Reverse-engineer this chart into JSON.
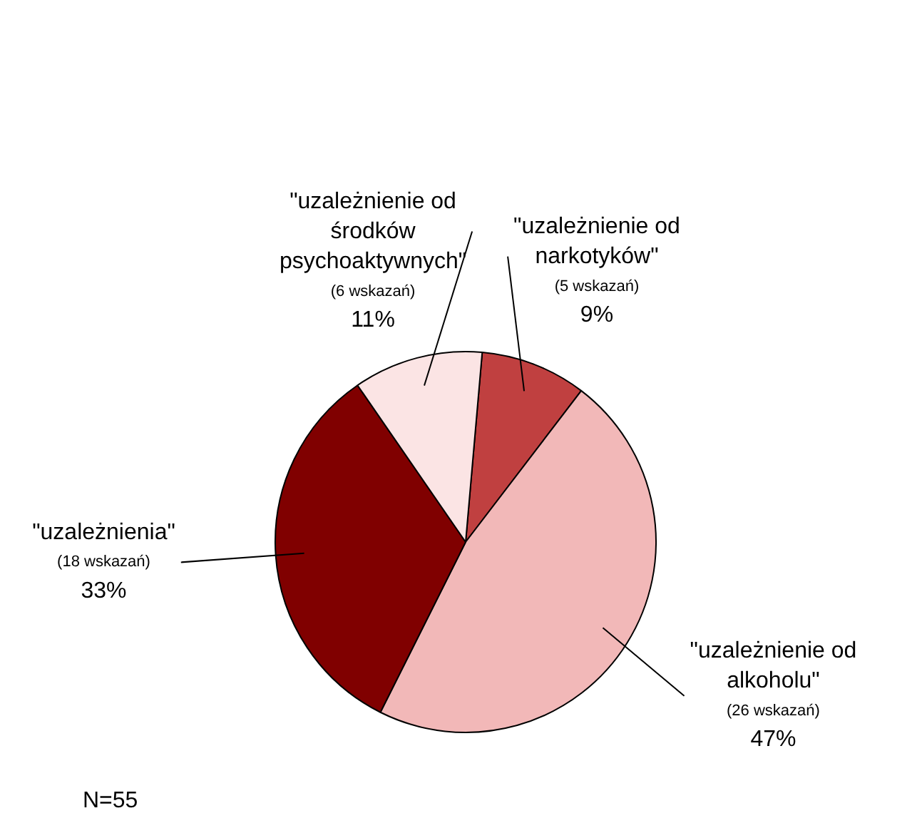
{
  "chart_data": {
    "type": "pie",
    "categories": [
      "\"uzależnienie od narkotyków\"",
      "\"uzależnienie od alkoholu\"",
      "\"uzależnienia\"",
      "\"uzależnienie od środków psychoaktywnych\""
    ],
    "values": [
      9,
      47,
      33,
      11
    ],
    "colors": [
      "#c04040",
      "#f2b8b8",
      "#800000",
      "#fbe4e4"
    ],
    "value_labels": [
      "9%",
      "47%",
      "33%",
      "11%"
    ],
    "annotations": [
      "(5 wskazań)",
      "(26 wskazań)",
      "(18 wskazań)",
      "(6 wskazań)",
      "N=55"
    ]
  }
}
